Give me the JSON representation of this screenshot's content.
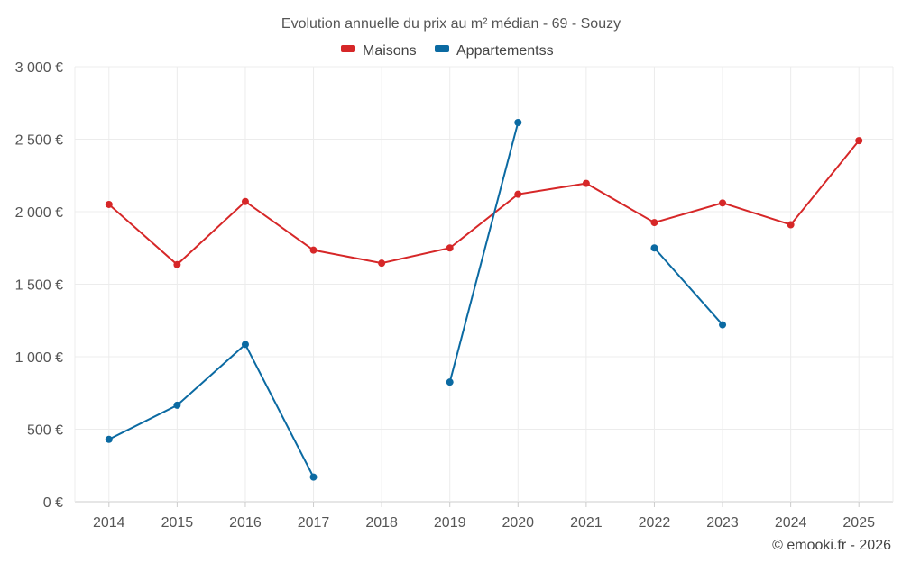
{
  "chart_data": {
    "type": "line",
    "title": "Evolution annuelle du prix au m² médian - 69 - Souzy",
    "categories": [
      "2014",
      "2015",
      "2016",
      "2017",
      "2018",
      "2019",
      "2020",
      "2021",
      "2022",
      "2023",
      "2024",
      "2025"
    ],
    "ylim": [
      0,
      3000
    ],
    "yticks": [
      0,
      500,
      1000,
      1500,
      2000,
      2500,
      3000
    ],
    "ytick_labels": [
      "0 €",
      "500 €",
      "1 000 €",
      "1 500 €",
      "2 000 €",
      "2 500 €",
      "3 000 €"
    ],
    "grid": true,
    "legend_position": "top-center",
    "series": [
      {
        "name": "Maisons",
        "color": "#d62728",
        "values": [
          2050,
          1635,
          2070,
          1735,
          1645,
          1750,
          2120,
          2195,
          1925,
          2060,
          1910,
          2490
        ]
      },
      {
        "name": "Appartementss",
        "color": "#0b6aa2",
        "values": [
          430,
          665,
          1085,
          170,
          null,
          825,
          2615,
          null,
          1750,
          1220,
          null,
          null
        ]
      }
    ]
  },
  "credit": "© emooki.fr - 2026"
}
